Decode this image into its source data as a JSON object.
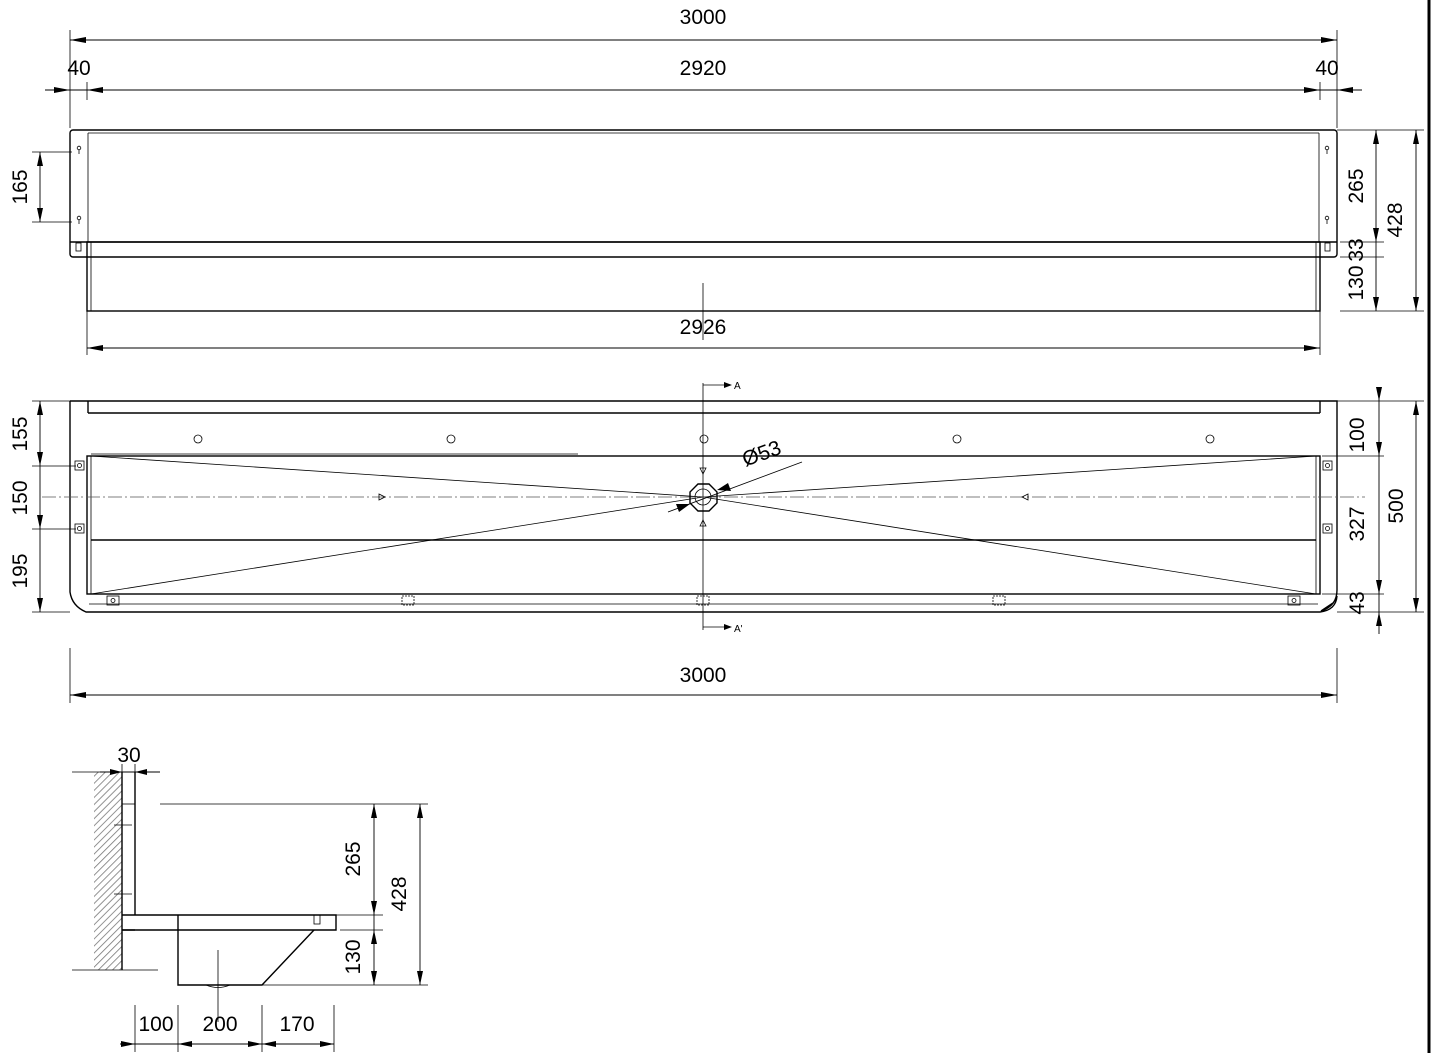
{
  "top_view": {
    "overall_width": "3000",
    "inner_width": "2920",
    "left_margin": "40",
    "right_margin": "40",
    "bottom_width": "2926",
    "hole_spacing": "165",
    "back_height": "265",
    "total_height": "428",
    "lip_height": "33",
    "channel_height": "130"
  },
  "plan_view": {
    "section_mark_top": "A",
    "section_mark_bottom": "A'",
    "drain_diameter": "Ø53",
    "left_dims": [
      "155",
      "150",
      "195"
    ],
    "right_dims": [
      "100",
      "327",
      "43"
    ],
    "depth": "500",
    "overall_width": "3000"
  },
  "section_view": {
    "wall_offset": "30",
    "back_height": "265",
    "total_height": "428",
    "channel_height": "130",
    "bottom_dims": [
      "100",
      "200",
      "170"
    ]
  }
}
